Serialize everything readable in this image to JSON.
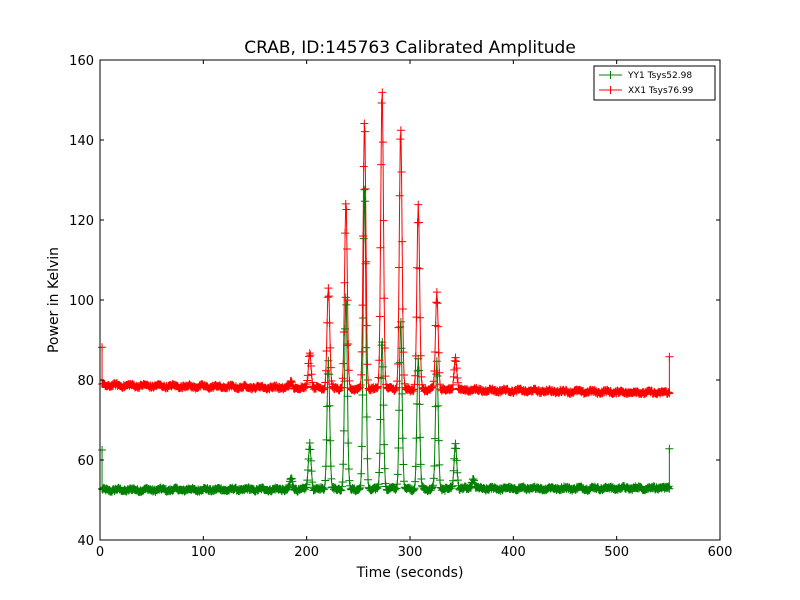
{
  "chart_data": {
    "type": "line",
    "title": "CRAB, ID:145763 Calibrated Amplitude",
    "xlabel": "Time (seconds)",
    "ylabel": "Power in Kelvin",
    "xlim": [
      0,
      600
    ],
    "ylim": [
      40,
      160
    ],
    "x_ticks": [
      "0",
      "100",
      "200",
      "300",
      "400",
      "500",
      "600"
    ],
    "y_ticks": [
      "40",
      "60",
      "80",
      "100",
      "120",
      "140",
      "160"
    ],
    "legend_position": "top-right",
    "series": [
      {
        "name": "YY1 Tsys52.98",
        "color": "#008000",
        "baseline_start": 52.5,
        "baseline_end": 53.0,
        "start_spike": 62.5,
        "end_spike": 62.8,
        "pulses": [
          {
            "t": 185,
            "peak": 55
          },
          {
            "t": 203,
            "peak": 64
          },
          {
            "t": 221,
            "peak": 85
          },
          {
            "t": 238,
            "peak": 101
          },
          {
            "t": 256,
            "peak": 128
          },
          {
            "t": 273,
            "peak": 90
          },
          {
            "t": 291,
            "peak": 95
          },
          {
            "t": 308,
            "peak": 85
          },
          {
            "t": 326,
            "peak": 84
          },
          {
            "t": 344,
            "peak": 64
          },
          {
            "t": 361,
            "peak": 55
          }
        ]
      },
      {
        "name": "XX1 Tsys76.99",
        "color": "#ff0000",
        "baseline_start": 78.7,
        "baseline_end": 76.8,
        "start_spike": 88.2,
        "end_spike": 85.8,
        "pulses": [
          {
            "t": 185,
            "peak": 80
          },
          {
            "t": 203,
            "peak": 88
          },
          {
            "t": 221,
            "peak": 104
          },
          {
            "t": 238,
            "peak": 125
          },
          {
            "t": 256,
            "peak": 146
          },
          {
            "t": 273,
            "peak": 154
          },
          {
            "t": 291,
            "peak": 144
          },
          {
            "t": 308,
            "peak": 125
          },
          {
            "t": 326,
            "peak": 103
          },
          {
            "t": 344,
            "peak": 87
          },
          {
            "t": 361,
            "peak": 79
          }
        ]
      }
    ],
    "t_start": 2,
    "t_end": 551
  }
}
